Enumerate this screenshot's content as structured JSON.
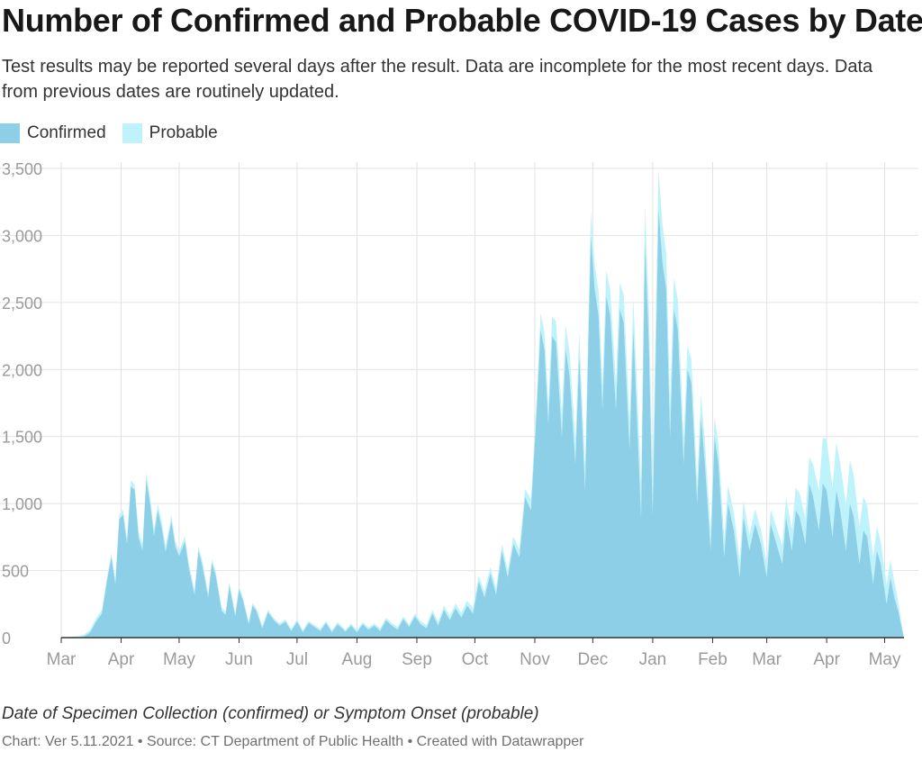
{
  "title": "Number of Confirmed and Probable COVID-19 Cases by Date",
  "description": "Test results may be reported several days after the result. Data are incomplete for the most recent days. Data from previous dates are routinely updated.",
  "xlabel": "Date of Specimen Collection (confirmed) or Symptom Onset (probable)",
  "credit": "Chart: Ver 5.11.2021 • Source: CT Department of Public Health • Created with Datawrapper",
  "colors": {
    "confirmed": "#8dcfe6",
    "probable": "#bff3fb",
    "grid": "#e2e2e2",
    "axis": "#333333",
    "tick_text": "#9a9a9a"
  },
  "chart_data": {
    "type": "area",
    "stacked": true,
    "x_start": "2020-03-01",
    "x_end": "2021-05-11",
    "ylim": [
      0,
      3500
    ],
    "y_ticks": [
      0,
      500,
      1000,
      1500,
      2000,
      2500,
      3000,
      3500
    ],
    "y_tick_labels": [
      "0",
      "500",
      "1,000",
      "1,500",
      "2,000",
      "2,500",
      "3,000",
      "3,500"
    ],
    "x_ticks": [
      {
        "date": "2020-03-01",
        "label": "Mar"
      },
      {
        "date": "2020-04-01",
        "label": "Apr"
      },
      {
        "date": "2020-05-01",
        "label": "May"
      },
      {
        "date": "2020-06-01",
        "label": "Jun"
      },
      {
        "date": "2020-07-01",
        "label": "Jul"
      },
      {
        "date": "2020-08-01",
        "label": "Aug"
      },
      {
        "date": "2020-09-01",
        "label": "Sep"
      },
      {
        "date": "2020-10-01",
        "label": "Oct"
      },
      {
        "date": "2020-11-01",
        "label": "Nov"
      },
      {
        "date": "2020-12-01",
        "label": "Dec"
      },
      {
        "date": "2021-01-01",
        "label": "Jan"
      },
      {
        "date": "2021-02-01",
        "label": "Feb"
      },
      {
        "date": "2021-03-01",
        "label": "Mar"
      },
      {
        "date": "2021-04-01",
        "label": "Apr"
      },
      {
        "date": "2021-05-01",
        "label": "May"
      }
    ],
    "series": [
      {
        "name": "Confirmed",
        "points": [
          [
            "2020-03-01",
            0
          ],
          [
            "2020-03-10",
            0
          ],
          [
            "2020-03-13",
            10
          ],
          [
            "2020-03-16",
            40
          ],
          [
            "2020-03-19",
            120
          ],
          [
            "2020-03-22",
            180
          ],
          [
            "2020-03-25",
            450
          ],
          [
            "2020-03-27",
            600
          ],
          [
            "2020-03-29",
            400
          ],
          [
            "2020-03-31",
            880
          ],
          [
            "2020-04-02",
            920
          ],
          [
            "2020-04-04",
            700
          ],
          [
            "2020-04-06",
            1130
          ],
          [
            "2020-04-08",
            1100
          ],
          [
            "2020-04-10",
            750
          ],
          [
            "2020-04-12",
            650
          ],
          [
            "2020-04-14",
            1180
          ],
          [
            "2020-04-16",
            1000
          ],
          [
            "2020-04-18",
            760
          ],
          [
            "2020-04-20",
            950
          ],
          [
            "2020-04-22",
            820
          ],
          [
            "2020-04-24",
            640
          ],
          [
            "2020-04-27",
            870
          ],
          [
            "2020-04-29",
            680
          ],
          [
            "2020-05-01",
            610
          ],
          [
            "2020-05-04",
            720
          ],
          [
            "2020-05-06",
            520
          ],
          [
            "2020-05-09",
            320
          ],
          [
            "2020-05-11",
            650
          ],
          [
            "2020-05-13",
            540
          ],
          [
            "2020-05-16",
            300
          ],
          [
            "2020-05-18",
            560
          ],
          [
            "2020-05-20",
            460
          ],
          [
            "2020-05-23",
            200
          ],
          [
            "2020-05-25",
            170
          ],
          [
            "2020-05-27",
            390
          ],
          [
            "2020-05-30",
            160
          ],
          [
            "2020-06-01",
            360
          ],
          [
            "2020-06-03",
            280
          ],
          [
            "2020-06-06",
            100
          ],
          [
            "2020-06-08",
            240
          ],
          [
            "2020-06-10",
            200
          ],
          [
            "2020-06-13",
            70
          ],
          [
            "2020-06-16",
            190
          ],
          [
            "2020-06-19",
            130
          ],
          [
            "2020-06-22",
            90
          ],
          [
            "2020-06-25",
            120
          ],
          [
            "2020-06-28",
            50
          ],
          [
            "2020-07-01",
            120
          ],
          [
            "2020-07-04",
            40
          ],
          [
            "2020-07-07",
            110
          ],
          [
            "2020-07-10",
            80
          ],
          [
            "2020-07-13",
            50
          ],
          [
            "2020-07-16",
            110
          ],
          [
            "2020-07-19",
            40
          ],
          [
            "2020-07-22",
            100
          ],
          [
            "2020-07-26",
            45
          ],
          [
            "2020-07-29",
            90
          ],
          [
            "2020-08-01",
            40
          ],
          [
            "2020-08-04",
            100
          ],
          [
            "2020-08-07",
            60
          ],
          [
            "2020-08-10",
            90
          ],
          [
            "2020-08-13",
            50
          ],
          [
            "2020-08-16",
            130
          ],
          [
            "2020-08-19",
            90
          ],
          [
            "2020-08-22",
            60
          ],
          [
            "2020-08-25",
            140
          ],
          [
            "2020-08-28",
            80
          ],
          [
            "2020-08-31",
            160
          ],
          [
            "2020-09-03",
            100
          ],
          [
            "2020-09-06",
            70
          ],
          [
            "2020-09-09",
            180
          ],
          [
            "2020-09-12",
            90
          ],
          [
            "2020-09-15",
            210
          ],
          [
            "2020-09-18",
            130
          ],
          [
            "2020-09-21",
            220
          ],
          [
            "2020-09-24",
            150
          ],
          [
            "2020-09-27",
            240
          ],
          [
            "2020-09-30",
            180
          ],
          [
            "2020-10-03",
            420
          ],
          [
            "2020-10-06",
            300
          ],
          [
            "2020-10-09",
            480
          ],
          [
            "2020-10-12",
            320
          ],
          [
            "2020-10-15",
            650
          ],
          [
            "2020-10-18",
            450
          ],
          [
            "2020-10-21",
            700
          ],
          [
            "2020-10-24",
            600
          ],
          [
            "2020-10-27",
            1050
          ],
          [
            "2020-10-30",
            950
          ],
          [
            "2020-11-02",
            1700
          ],
          [
            "2020-11-04",
            2300
          ],
          [
            "2020-11-06",
            2150
          ],
          [
            "2020-11-08",
            1600
          ],
          [
            "2020-11-10",
            2250
          ],
          [
            "2020-11-12",
            2200
          ],
          [
            "2020-11-15",
            1500
          ],
          [
            "2020-11-17",
            2150
          ],
          [
            "2020-11-19",
            1950
          ],
          [
            "2020-11-22",
            1300
          ],
          [
            "2020-11-24",
            2100
          ],
          [
            "2020-11-27",
            1100
          ],
          [
            "2020-11-30",
            3000
          ],
          [
            "2020-12-02",
            2600
          ],
          [
            "2020-12-04",
            2400
          ],
          [
            "2020-12-06",
            1700
          ],
          [
            "2020-12-08",
            2550
          ],
          [
            "2020-12-10",
            2400
          ],
          [
            "2020-12-13",
            1700
          ],
          [
            "2020-12-15",
            2450
          ],
          [
            "2020-12-17",
            2350
          ],
          [
            "2020-12-20",
            1400
          ],
          [
            "2020-12-22",
            2300
          ],
          [
            "2020-12-24",
            1600
          ],
          [
            "2020-12-26",
            900
          ],
          [
            "2020-12-28",
            2950
          ],
          [
            "2020-12-30",
            2200
          ],
          [
            "2021-01-01",
            900
          ],
          [
            "2021-01-04",
            3200
          ],
          [
            "2021-01-06",
            2800
          ],
          [
            "2021-01-08",
            2600
          ],
          [
            "2021-01-10",
            1500
          ],
          [
            "2021-01-12",
            2450
          ],
          [
            "2021-01-14",
            2300
          ],
          [
            "2021-01-17",
            1300
          ],
          [
            "2021-01-19",
            2000
          ],
          [
            "2021-01-21",
            1900
          ],
          [
            "2021-01-24",
            1000
          ],
          [
            "2021-01-26",
            1650
          ],
          [
            "2021-01-28",
            1300
          ],
          [
            "2021-01-31",
            650
          ],
          [
            "2021-02-02",
            1500
          ],
          [
            "2021-02-04",
            1300
          ],
          [
            "2021-02-07",
            600
          ],
          [
            "2021-02-09",
            1000
          ],
          [
            "2021-02-12",
            800
          ],
          [
            "2021-02-15",
            450
          ],
          [
            "2021-02-17",
            900
          ],
          [
            "2021-02-20",
            650
          ],
          [
            "2021-02-23",
            850
          ],
          [
            "2021-02-26",
            700
          ],
          [
            "2021-03-01",
            450
          ],
          [
            "2021-03-03",
            850
          ],
          [
            "2021-03-06",
            700
          ],
          [
            "2021-03-09",
            550
          ],
          [
            "2021-03-11",
            900
          ],
          [
            "2021-03-14",
            650
          ],
          [
            "2021-03-16",
            950
          ],
          [
            "2021-03-18",
            900
          ],
          [
            "2021-03-21",
            700
          ],
          [
            "2021-03-23",
            1150
          ],
          [
            "2021-03-25",
            1050
          ],
          [
            "2021-03-28",
            800
          ],
          [
            "2021-03-30",
            1150
          ],
          [
            "2021-04-01",
            1100
          ],
          [
            "2021-04-04",
            750
          ],
          [
            "2021-04-06",
            1100
          ],
          [
            "2021-04-08",
            950
          ],
          [
            "2021-04-11",
            650
          ],
          [
            "2021-04-13",
            1000
          ],
          [
            "2021-04-15",
            900
          ],
          [
            "2021-04-18",
            550
          ],
          [
            "2021-04-20",
            800
          ],
          [
            "2021-04-22",
            750
          ],
          [
            "2021-04-25",
            400
          ],
          [
            "2021-04-27",
            650
          ],
          [
            "2021-04-29",
            550
          ],
          [
            "2021-05-02",
            250
          ],
          [
            "2021-05-04",
            450
          ],
          [
            "2021-05-06",
            300
          ],
          [
            "2021-05-08",
            200
          ],
          [
            "2021-05-09",
            130
          ],
          [
            "2021-05-10",
            60
          ],
          [
            "2021-05-11",
            0
          ]
        ]
      },
      {
        "name": "Probable",
        "points": [
          [
            "2020-03-01",
            0
          ],
          [
            "2020-03-25",
            30
          ],
          [
            "2020-04-06",
            40
          ],
          [
            "2020-04-14",
            50
          ],
          [
            "2020-05-01",
            40
          ],
          [
            "2020-06-01",
            20
          ],
          [
            "2020-07-01",
            15
          ],
          [
            "2020-08-01",
            15
          ],
          [
            "2020-09-01",
            20
          ],
          [
            "2020-10-01",
            40
          ],
          [
            "2020-10-27",
            60
          ],
          [
            "2020-11-04",
            120
          ],
          [
            "2020-11-17",
            180
          ],
          [
            "2020-11-30",
            180
          ],
          [
            "2020-12-15",
            200
          ],
          [
            "2021-01-04",
            300
          ],
          [
            "2021-01-19",
            180
          ],
          [
            "2021-02-02",
            150
          ],
          [
            "2021-03-01",
            100
          ],
          [
            "2021-03-23",
            200
          ],
          [
            "2021-04-01",
            380
          ],
          [
            "2021-04-13",
            330
          ],
          [
            "2021-04-27",
            180
          ],
          [
            "2021-05-06",
            120
          ],
          [
            "2021-05-11",
            0
          ]
        ]
      }
    ]
  },
  "legend": [
    {
      "label": "Confirmed",
      "color": "#8dcfe6"
    },
    {
      "label": "Probable",
      "color": "#bff3fb"
    }
  ]
}
